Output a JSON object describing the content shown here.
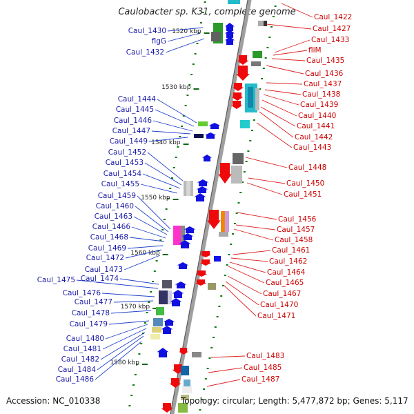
{
  "title": "Caulobacter sp. K31, complete genome",
  "accession": "Accession: NC_010338",
  "summary": "Topology: circular; Length: 5,477,872 bp; Genes: 5,117",
  "colors": {
    "left_label": "#1a1aaa",
    "right_label": "#cc0000",
    "left_gene": "#1010e0",
    "right_gene": "#ee0a0a",
    "tick": "#0a7a0a"
  },
  "scale_ticks": [
    "1520 kbp",
    "1530 kbp",
    "1540 kbp",
    "1550 kbp",
    "1560 kbp",
    "1570 kbp",
    "1580 kbp"
  ],
  "left_labels": [
    "Caul_1430",
    "flgG",
    "Caul_1432",
    "Caul_1444",
    "Caul_1445",
    "Caul_1446",
    "Caul_1447",
    "Caul_1449",
    "Caul_1452",
    "Caul_1453",
    "Caul_1454",
    "Caul_1455",
    "Caul_1459",
    "Caul_1460",
    "Caul_1463",
    "Caul_1466",
    "Caul_1468",
    "Caul_1469",
    "Caul_1472",
    "Caul_1473",
    "Caul_1475",
    "Caul_1474",
    "Caul_1476",
    "Caul_1477",
    "Caul_1478",
    "Caul_1479",
    "Caul_1480",
    "Caul_1481",
    "Caul_1482",
    "Caul_1484",
    "Caul_1486"
  ],
  "right_labels": [
    "Caul_1422",
    "Caul_1427",
    "Caul_1433",
    "fliM",
    "Caul_1435",
    "Caul_1436",
    "Caul_1437",
    "Caul_1438",
    "Caul_1439",
    "Caul_1440",
    "Caul_1441",
    "Caul_1442",
    "Caul_1443",
    "Caul_1448",
    "Caul_1450",
    "Caul_1451",
    "Caul_1456",
    "Caul_1457",
    "Caul_1458",
    "Caul_1461",
    "Caul_1462",
    "Caul_1464",
    "Caul_1465",
    "Caul_1467",
    "Caul_1470",
    "Caul_1471",
    "Caul_1483",
    "Caul_1485",
    "Caul_1487"
  ]
}
